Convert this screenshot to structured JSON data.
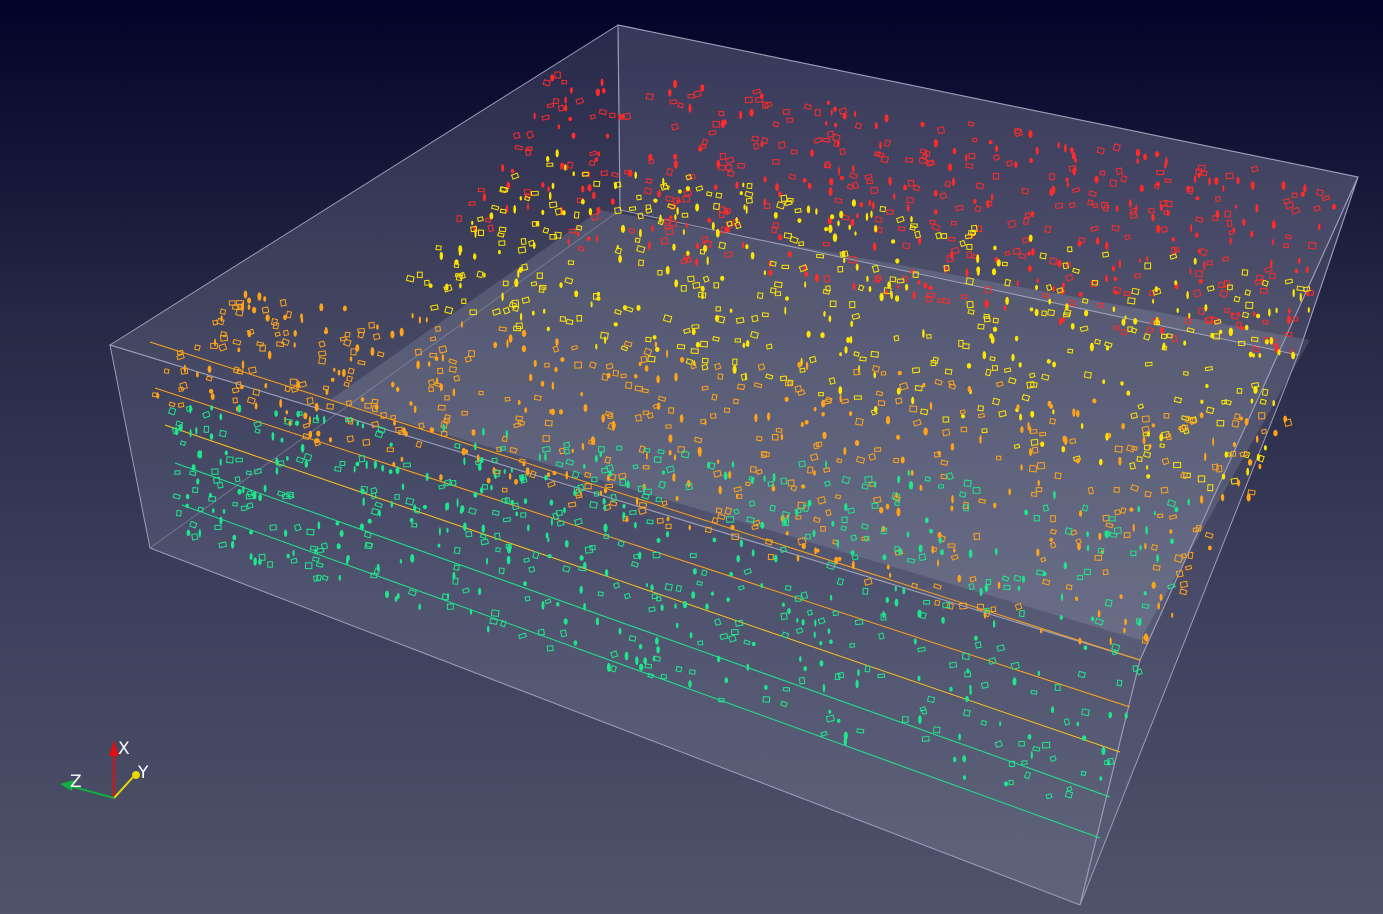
{
  "viewer": {
    "orientation_axes": {
      "x_label": "X",
      "y_label": "Y",
      "z_label": "Z",
      "x_color": "#e01010",
      "y_color": "#e6d800",
      "z_color": "#10b040"
    },
    "colors": {
      "background_top": "#030329",
      "background_bottom": "#50536a",
      "box_face": "#c8cce0",
      "box_edge": "#9a9db8",
      "glyph_red": "#ff2a2a",
      "glyph_yellow": "#ffe600",
      "glyph_orange": "#ffa31a",
      "glyph_green": "#1ee68c"
    },
    "glyph_layers": [
      {
        "name": "red",
        "color": "#ff2a2a"
      },
      {
        "name": "yellow",
        "color": "#ffe600"
      },
      {
        "name": "orange",
        "color": "#ffa31a"
      },
      {
        "name": "green",
        "color": "#1ee68c"
      }
    ]
  }
}
